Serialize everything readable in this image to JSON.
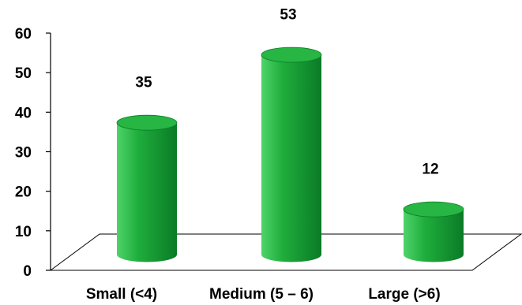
{
  "chart_data": {
    "type": "bar",
    "style": "3d-cylinder",
    "title": "",
    "xlabel": "",
    "ylabel": "",
    "categories": [
      "Small (<4)",
      "Medium (5 – 6)",
      "Large (>6)"
    ],
    "values": [
      35,
      53,
      12
    ],
    "data_labels": [
      "35",
      "53",
      "12"
    ],
    "ylim": [
      0,
      60
    ],
    "yticks": [
      "0",
      "10",
      "20",
      "30",
      "40",
      "50",
      "60"
    ],
    "grid": false,
    "legend": "none",
    "colors": {
      "bar_light": "#4fd36a",
      "bar_mid": "#1fae3c",
      "bar_dark": "#0b7a27",
      "bar_top": "#27b543",
      "axis": "#000000",
      "floor": "#000000"
    }
  }
}
